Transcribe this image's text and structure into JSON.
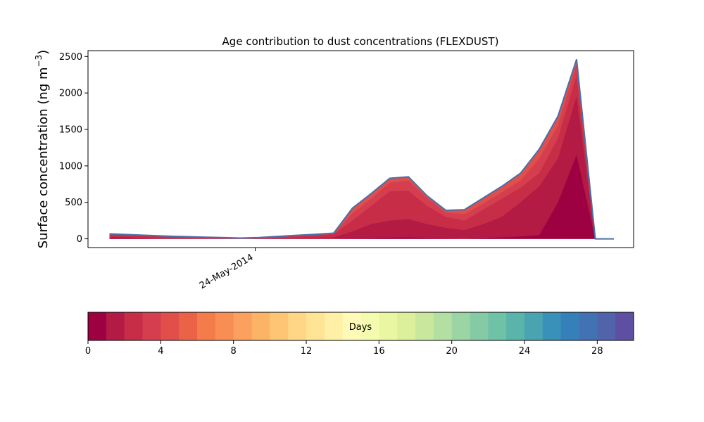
{
  "chart_data": {
    "type": "area",
    "title": "Age contribution to dust concentrations (FLEXDUST)",
    "ylabel": "Surface concentration (ng m",
    "ylabel_superscript": "−3",
    "ylabel_suffix": ")",
    "ylim": [
      -120,
      2580
    ],
    "yticks": [
      0,
      500,
      1000,
      1500,
      2000,
      2500
    ],
    "x": [
      0,
      1,
      2,
      3,
      4,
      5,
      6,
      7,
      8,
      9,
      10,
      11,
      12,
      13,
      14,
      15,
      16,
      17,
      18,
      19,
      20,
      21,
      22,
      23,
      24,
      25,
      26,
      27
    ],
    "xlim": [
      -1.15,
      28.05
    ],
    "xtick_positions": [
      7.8
    ],
    "xtick_labels": [
      "24-May-2014"
    ],
    "stack_layers": [
      {
        "values": [
          5,
          3,
          1,
          0,
          0,
          0,
          0,
          0,
          0,
          0,
          0,
          0,
          0,
          5,
          10,
          15,
          20,
          10,
          5,
          0,
          10,
          20,
          30,
          50,
          500,
          1150,
          0,
          0
        ]
      },
      {
        "values": [
          25,
          20,
          10,
          5,
          3,
          2,
          1,
          2,
          3,
          5,
          10,
          15,
          20,
          100,
          200,
          250,
          270,
          200,
          150,
          120,
          200,
          300,
          500,
          720,
          1100,
          1950,
          0,
          0
        ]
      },
      {
        "values": [
          55,
          45,
          35,
          25,
          20,
          15,
          10,
          5,
          10,
          20,
          30,
          45,
          60,
          250,
          450,
          650,
          660,
          450,
          300,
          250,
          400,
          550,
          700,
          900,
          1380,
          2240,
          0,
          0
        ]
      },
      {
        "values": [
          62,
          52,
          42,
          32,
          25,
          20,
          15,
          8,
          15,
          28,
          40,
          55,
          70,
          350,
          550,
          770,
          800,
          560,
          360,
          340,
          480,
          640,
          800,
          1100,
          1550,
          2400,
          0,
          0
        ]
      },
      {
        "values": [
          68,
          58,
          48,
          38,
          30,
          24,
          18,
          10,
          18,
          33,
          48,
          62,
          78,
          420,
          620,
          830,
          850,
          590,
          390,
          400,
          560,
          720,
          900,
          1230,
          1680,
          2460,
          0,
          0
        ]
      }
    ],
    "outline_color": "#4a6fa8",
    "colorbar": {
      "label": "Days",
      "range": [
        0,
        30
      ],
      "bins": 30,
      "tick_values": [
        0,
        4,
        8,
        12,
        16,
        20,
        24,
        28
      ],
      "tick_labels": [
        "0",
        "4",
        "8",
        "12",
        "16",
        "20",
        "24",
        "28"
      ],
      "colors": [
        "#9e0142",
        "#b31a44",
        "#c72d47",
        "#d53e4f",
        "#e04f4a",
        "#eb6346",
        "#f47b4a",
        "#f88e54",
        "#fba05e",
        "#fdb366",
        "#fec575",
        "#fed685",
        "#fee494",
        "#fff0a6",
        "#fffab7",
        "#f5fbae",
        "#eaf7a2",
        "#dcf09b",
        "#c9e89d",
        "#b3e0a2",
        "#9bd5a4",
        "#84cba5",
        "#6fc2a6",
        "#5ab4a9",
        "#4aa3b1",
        "#3990b9",
        "#3580bb",
        "#4372b4",
        "#5163ab",
        "#5e4fa2"
      ]
    }
  }
}
